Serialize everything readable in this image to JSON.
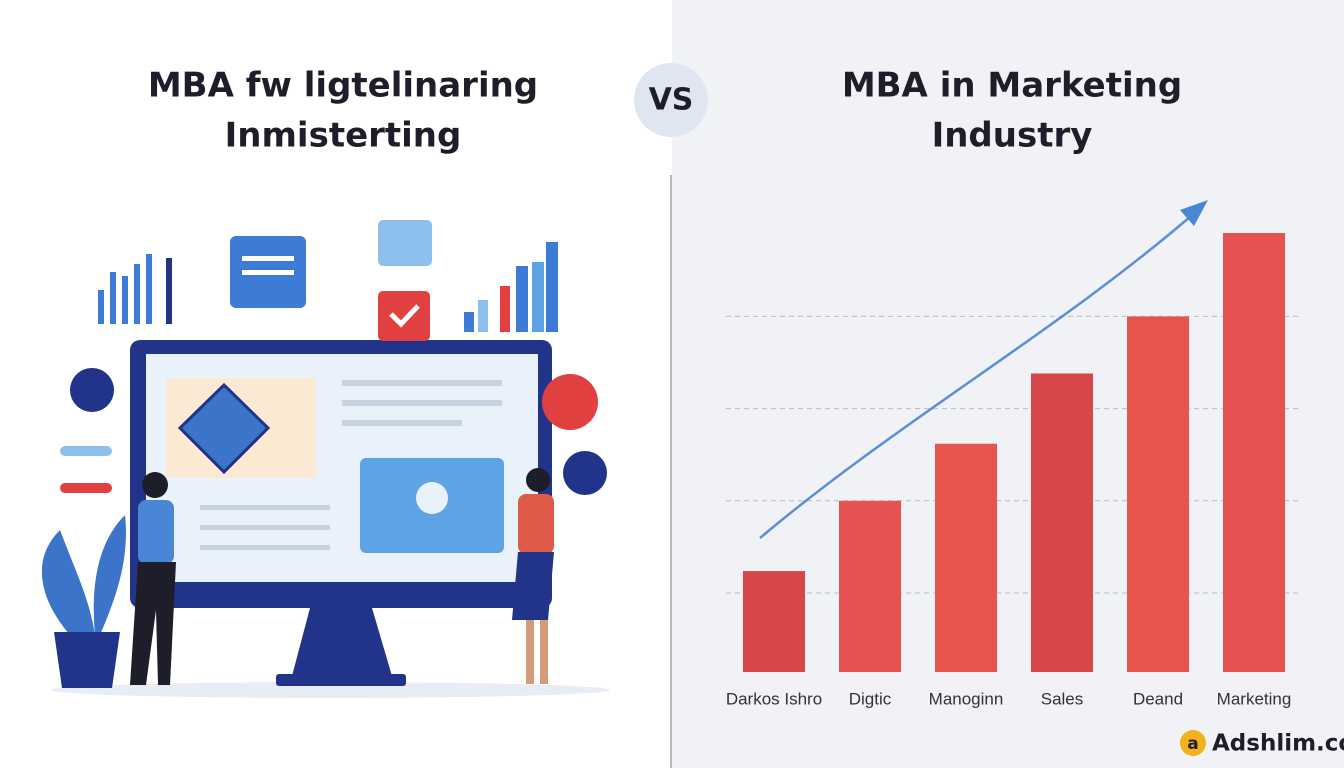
{
  "left": {
    "title_lines": [
      "MBA fw ligtelinaring",
      "Inmisterting"
    ]
  },
  "vs": "VS",
  "right": {
    "title_lines": [
      "MBA in Marketing",
      "Industry"
    ]
  },
  "chart_data": {
    "type": "bar",
    "categories": [
      "Darkos Ishro",
      "Digtic",
      "Manoginn",
      "Sales",
      "Deand",
      "Marketing"
    ],
    "values": [
      23,
      39,
      52,
      68,
      81,
      100
    ],
    "colors": [
      "#d9474b",
      "#e6524f",
      "#e8544f",
      "#d9464a",
      "#e8544f",
      "#e6524f"
    ],
    "ylim": [
      0,
      100
    ],
    "yticks": [
      18,
      39,
      60,
      81
    ],
    "grid": true
  },
  "watermark": {
    "icon": "a",
    "text": "Adshlim.co"
  }
}
